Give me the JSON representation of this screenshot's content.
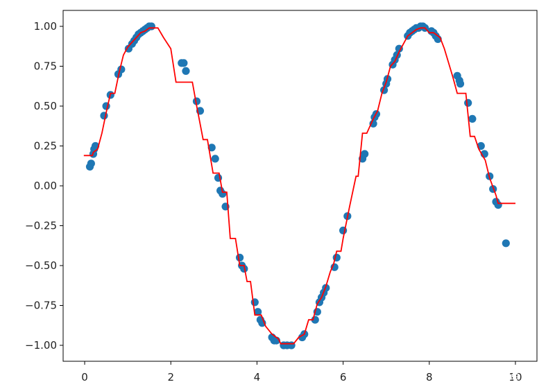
{
  "chart_data": {
    "type": "scatter",
    "title": "",
    "xlabel": "",
    "ylabel": "",
    "xlim": [
      -0.5,
      10.5
    ],
    "ylim": [
      -1.1,
      1.1
    ],
    "x_ticks": [
      0,
      2,
      4,
      6,
      8,
      10
    ],
    "x_tick_labels": [
      "0",
      "2",
      "4",
      "6",
      "8",
      "10"
    ],
    "y_ticks": [
      1.0,
      0.75,
      0.5,
      0.25,
      0.0,
      -0.25,
      -0.5,
      -0.75,
      -1.0
    ],
    "y_tick_labels": [
      "1.00",
      "0.75",
      "0.50",
      "0.25",
      "0.00",
      "−0.25",
      "−0.50",
      "−0.75",
      "−1.00"
    ],
    "grid": false,
    "legend": false,
    "series": [
      {
        "kind": "scatter",
        "color": "#1f77b4",
        "points": [
          [
            0.12,
            0.12
          ],
          [
            0.15,
            0.14
          ],
          [
            0.2,
            0.2
          ],
          [
            0.22,
            0.23
          ],
          [
            0.25,
            0.25
          ],
          [
            0.45,
            0.44
          ],
          [
            0.5,
            0.5
          ],
          [
            0.6,
            0.57
          ],
          [
            0.78,
            0.7
          ],
          [
            0.85,
            0.73
          ],
          [
            1.02,
            0.86
          ],
          [
            1.1,
            0.89
          ],
          [
            1.15,
            0.91
          ],
          [
            1.2,
            0.93
          ],
          [
            1.25,
            0.95
          ],
          [
            1.3,
            0.96
          ],
          [
            1.35,
            0.97
          ],
          [
            1.4,
            0.98
          ],
          [
            1.45,
            0.99
          ],
          [
            1.5,
            1.0
          ],
          [
            1.55,
            1.0
          ],
          [
            2.25,
            0.77
          ],
          [
            2.3,
            0.77
          ],
          [
            2.35,
            0.72
          ],
          [
            2.6,
            0.53
          ],
          [
            2.68,
            0.47
          ],
          [
            2.95,
            0.24
          ],
          [
            3.03,
            0.17
          ],
          [
            3.1,
            0.05
          ],
          [
            3.15,
            -0.03
          ],
          [
            3.2,
            -0.05
          ],
          [
            3.27,
            -0.13
          ],
          [
            3.6,
            -0.45
          ],
          [
            3.65,
            -0.5
          ],
          [
            3.7,
            -0.52
          ],
          [
            3.95,
            -0.73
          ],
          [
            4.02,
            -0.79
          ],
          [
            4.08,
            -0.84
          ],
          [
            4.12,
            -0.86
          ],
          [
            4.35,
            -0.95
          ],
          [
            4.4,
            -0.97
          ],
          [
            4.45,
            -0.97
          ],
          [
            4.62,
            -1.0
          ],
          [
            4.7,
            -1.0
          ],
          [
            4.8,
            -1.0
          ],
          [
            5.05,
            -0.95
          ],
          [
            5.1,
            -0.93
          ],
          [
            5.35,
            -0.84
          ],
          [
            5.4,
            -0.79
          ],
          [
            5.45,
            -0.73
          ],
          [
            5.5,
            -0.7
          ],
          [
            5.55,
            -0.67
          ],
          [
            5.6,
            -0.64
          ],
          [
            5.8,
            -0.51
          ],
          [
            5.85,
            -0.45
          ],
          [
            6.0,
            -0.28
          ],
          [
            6.1,
            -0.19
          ],
          [
            6.45,
            0.17
          ],
          [
            6.5,
            0.2
          ],
          [
            6.7,
            0.39
          ],
          [
            6.73,
            0.43
          ],
          [
            6.77,
            0.45
          ],
          [
            6.95,
            0.6
          ],
          [
            7.0,
            0.64
          ],
          [
            7.03,
            0.67
          ],
          [
            7.15,
            0.76
          ],
          [
            7.2,
            0.79
          ],
          [
            7.25,
            0.82
          ],
          [
            7.3,
            0.86
          ],
          [
            7.5,
            0.94
          ],
          [
            7.55,
            0.96
          ],
          [
            7.6,
            0.97
          ],
          [
            7.65,
            0.98
          ],
          [
            7.7,
            0.99
          ],
          [
            7.75,
            0.99
          ],
          [
            7.8,
            1.0
          ],
          [
            7.85,
            1.0
          ],
          [
            7.9,
            0.99
          ],
          [
            8.05,
            0.97
          ],
          [
            8.1,
            0.96
          ],
          [
            8.15,
            0.94
          ],
          [
            8.2,
            0.92
          ],
          [
            8.65,
            0.69
          ],
          [
            8.7,
            0.66
          ],
          [
            8.72,
            0.64
          ],
          [
            8.9,
            0.52
          ],
          [
            9.0,
            0.42
          ],
          [
            9.2,
            0.25
          ],
          [
            9.28,
            0.2
          ],
          [
            9.4,
            0.06
          ],
          [
            9.48,
            -0.02
          ],
          [
            9.55,
            -0.1
          ],
          [
            9.6,
            -0.12
          ],
          [
            9.78,
            -0.36
          ]
        ]
      },
      {
        "kind": "step-line",
        "color": "#ff0000",
        "points": [
          [
            -0.02,
            0.19
          ],
          [
            0.18,
            0.19
          ],
          [
            0.2,
            0.21
          ],
          [
            0.3,
            0.23
          ],
          [
            0.4,
            0.33
          ],
          [
            0.5,
            0.46
          ],
          [
            0.6,
            0.58
          ],
          [
            0.7,
            0.58
          ],
          [
            0.8,
            0.71
          ],
          [
            0.9,
            0.82
          ],
          [
            1.0,
            0.87
          ],
          [
            1.1,
            0.9
          ],
          [
            1.2,
            0.93
          ],
          [
            1.3,
            0.96
          ],
          [
            1.4,
            0.97
          ],
          [
            1.5,
            0.99
          ],
          [
            1.6,
            0.99
          ],
          [
            1.7,
            0.99
          ],
          [
            1.83,
            0.93
          ],
          [
            2.0,
            0.86
          ],
          [
            2.12,
            0.65
          ],
          [
            2.5,
            0.65
          ],
          [
            2.6,
            0.5
          ],
          [
            2.68,
            0.39
          ],
          [
            2.75,
            0.29
          ],
          [
            2.85,
            0.29
          ],
          [
            2.98,
            0.08
          ],
          [
            3.12,
            0.08
          ],
          [
            3.2,
            -0.04
          ],
          [
            3.3,
            -0.04
          ],
          [
            3.38,
            -0.33
          ],
          [
            3.5,
            -0.33
          ],
          [
            3.6,
            -0.5
          ],
          [
            3.7,
            -0.5
          ],
          [
            3.77,
            -0.6
          ],
          [
            3.85,
            -0.6
          ],
          [
            3.95,
            -0.81
          ],
          [
            4.1,
            -0.81
          ],
          [
            4.2,
            -0.88
          ],
          [
            4.35,
            -0.93
          ],
          [
            4.5,
            -0.96
          ],
          [
            4.55,
            -0.99
          ],
          [
            4.7,
            -0.99
          ],
          [
            4.85,
            -0.99
          ],
          [
            4.97,
            -0.95
          ],
          [
            5.1,
            -0.93
          ],
          [
            5.2,
            -0.84
          ],
          [
            5.3,
            -0.84
          ],
          [
            5.4,
            -0.74
          ],
          [
            5.5,
            -0.7
          ],
          [
            5.6,
            -0.63
          ],
          [
            5.7,
            -0.54
          ],
          [
            5.78,
            -0.49
          ],
          [
            5.85,
            -0.41
          ],
          [
            5.95,
            -0.41
          ],
          [
            6.0,
            -0.33
          ],
          [
            6.15,
            -0.13
          ],
          [
            6.3,
            0.06
          ],
          [
            6.35,
            0.06
          ],
          [
            6.45,
            0.33
          ],
          [
            6.55,
            0.33
          ],
          [
            6.7,
            0.42
          ],
          [
            6.8,
            0.47
          ],
          [
            6.9,
            0.58
          ],
          [
            7.0,
            0.65
          ],
          [
            7.1,
            0.75
          ],
          [
            7.2,
            0.78
          ],
          [
            7.3,
            0.84
          ],
          [
            7.4,
            0.89
          ],
          [
            7.5,
            0.94
          ],
          [
            7.6,
            0.96
          ],
          [
            7.7,
            0.98
          ],
          [
            7.8,
            0.99
          ],
          [
            7.9,
            0.99
          ],
          [
            8.0,
            0.96
          ],
          [
            8.1,
            0.96
          ],
          [
            8.25,
            0.93
          ],
          [
            8.35,
            0.86
          ],
          [
            8.45,
            0.77
          ],
          [
            8.55,
            0.68
          ],
          [
            8.65,
            0.58
          ],
          [
            8.85,
            0.58
          ],
          [
            8.95,
            0.31
          ],
          [
            9.05,
            0.31
          ],
          [
            9.15,
            0.23
          ],
          [
            9.3,
            0.16
          ],
          [
            9.4,
            0.05
          ],
          [
            9.55,
            -0.06
          ],
          [
            9.6,
            -0.11
          ],
          [
            10.0,
            -0.11
          ]
        ]
      }
    ]
  },
  "watermark": {
    "text": "CSDN @呆子不呆L"
  }
}
